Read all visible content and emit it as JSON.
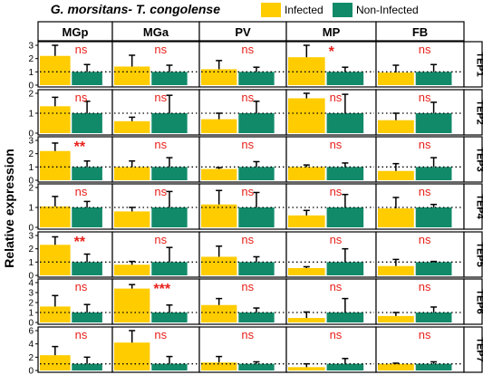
{
  "chart_data": {
    "type": "bar",
    "title": "G. morsitans- T. congolense",
    "ylabel": "Relative expression",
    "columns": [
      "MGp",
      "MGa",
      "PV",
      "MP",
      "FB"
    ],
    "rows": [
      "TEP1",
      "TEP2",
      "TEP3",
      "TEP4",
      "TEP5",
      "TEP6",
      "TEP7"
    ],
    "series": [
      {
        "name": "Infected",
        "color": "#FFCC00"
      },
      {
        "name": "Non-Infected",
        "color": "#118A6A"
      }
    ],
    "reference_line": 1,
    "panels": [
      {
        "row": "TEP1",
        "ylim": [
          0,
          3
        ],
        "ticks": [
          0,
          1,
          2,
          3
        ],
        "cells": [
          {
            "column": "MGp",
            "infected": {
              "mean": 2.2,
              "err": 1.2
            },
            "non_infected": {
              "mean": 1.0,
              "err": 0.55
            },
            "significance": "ns"
          },
          {
            "column": "MGa",
            "infected": {
              "mean": 1.4,
              "err": 0.85
            },
            "non_infected": {
              "mean": 1.0,
              "err": 0.5
            },
            "significance": "ns"
          },
          {
            "column": "PV",
            "infected": {
              "mean": 1.2,
              "err": 0.65
            },
            "non_infected": {
              "mean": 1.0,
              "err": 0.35
            },
            "significance": "ns"
          },
          {
            "column": "MP",
            "infected": {
              "mean": 2.1,
              "err": 0.9
            },
            "non_infected": {
              "mean": 1.0,
              "err": 0.35
            },
            "significance": "*"
          },
          {
            "column": "FB",
            "infected": {
              "mean": 0.95,
              "err": 0.55
            },
            "non_infected": {
              "mean": 1.0,
              "err": 0.55
            },
            "significance": "ns"
          }
        ]
      },
      {
        "row": "TEP2",
        "ylim": [
          0,
          2
        ],
        "ticks": [
          0,
          1,
          2
        ],
        "cells": [
          {
            "column": "MGp",
            "infected": {
              "mean": 1.35,
              "err": 0.45
            },
            "non_infected": {
              "mean": 1.0,
              "err": 0.6
            },
            "significance": "ns"
          },
          {
            "column": "MGa",
            "infected": {
              "mean": 0.6,
              "err": 0.2
            },
            "non_infected": {
              "mean": 1.0,
              "err": 0.9
            },
            "significance": "ns"
          },
          {
            "column": "PV",
            "infected": {
              "mean": 0.7,
              "err": 0.3
            },
            "non_infected": {
              "mean": 1.0,
              "err": 0.6
            },
            "significance": "ns"
          },
          {
            "column": "MP",
            "infected": {
              "mean": 1.75,
              "err": 0.25
            },
            "non_infected": {
              "mean": 1.0,
              "err": 0.95
            },
            "significance": "ns"
          },
          {
            "column": "FB",
            "infected": {
              "mean": 0.65,
              "err": 0.35
            },
            "non_infected": {
              "mean": 1.0,
              "err": 0.55
            },
            "significance": "ns"
          }
        ]
      },
      {
        "row": "TEP3",
        "ylim": [
          0,
          3
        ],
        "ticks": [
          0,
          1,
          2,
          3
        ],
        "cells": [
          {
            "column": "MGp",
            "infected": {
              "mean": 2.2,
              "err": 0.6
            },
            "non_infected": {
              "mean": 1.0,
              "err": 0.45
            },
            "significance": "**"
          },
          {
            "column": "MGa",
            "infected": {
              "mean": 1.0,
              "err": 0.45
            },
            "non_infected": {
              "mean": 1.0,
              "err": 0.7
            },
            "significance": "ns"
          },
          {
            "column": "PV",
            "infected": {
              "mean": 0.85,
              "err": 0.1
            },
            "non_infected": {
              "mean": 1.0,
              "err": 0.4
            },
            "significance": "ns"
          },
          {
            "column": "MP",
            "infected": {
              "mean": 1.0,
              "err": 0.15
            },
            "non_infected": {
              "mean": 1.0,
              "err": 0.3
            },
            "significance": "ns"
          },
          {
            "column": "FB",
            "infected": {
              "mean": 0.7,
              "err": 0.55
            },
            "non_infected": {
              "mean": 1.0,
              "err": 0.7
            },
            "significance": "ns"
          }
        ]
      },
      {
        "row": "TEP4",
        "ylim": [
          0,
          2
        ],
        "ticks": [
          0,
          1,
          2
        ],
        "cells": [
          {
            "column": "MGp",
            "infected": {
              "mean": 1.05,
              "err": 0.5
            },
            "non_infected": {
              "mean": 1.0,
              "err": 0.3
            },
            "significance": "ns"
          },
          {
            "column": "MGa",
            "infected": {
              "mean": 0.8,
              "err": 0.2
            },
            "non_infected": {
              "mean": 1.0,
              "err": 0.8
            },
            "significance": "ns"
          },
          {
            "column": "PV",
            "infected": {
              "mean": 1.15,
              "err": 0.7
            },
            "non_infected": {
              "mean": 1.0,
              "err": 0.75
            },
            "significance": "ns"
          },
          {
            "column": "MP",
            "infected": {
              "mean": 0.6,
              "err": 0.25
            },
            "non_infected": {
              "mean": 1.0,
              "err": 0.65
            },
            "significance": "ns"
          },
          {
            "column": "FB",
            "infected": {
              "mean": 0.95,
              "err": 0.55
            },
            "non_infected": {
              "mean": 1.0,
              "err": 0.15
            },
            "significance": "ns"
          }
        ]
      },
      {
        "row": "TEP5",
        "ylim": [
          0,
          3
        ],
        "ticks": [
          0,
          1,
          2,
          3
        ],
        "cells": [
          {
            "column": "MGp",
            "infected": {
              "mean": 2.3,
              "err": 0.6
            },
            "non_infected": {
              "mean": 1.0,
              "err": 0.6
            },
            "significance": "**"
          },
          {
            "column": "MGa",
            "infected": {
              "mean": 0.8,
              "err": 0.25
            },
            "non_infected": {
              "mean": 1.0,
              "err": 1.1
            },
            "significance": "ns"
          },
          {
            "column": "PV",
            "infected": {
              "mean": 1.4,
              "err": 0.8
            },
            "non_infected": {
              "mean": 1.0,
              "err": 0.4
            },
            "significance": "ns"
          },
          {
            "column": "MP",
            "infected": {
              "mean": 0.55,
              "err": 0.1
            },
            "non_infected": {
              "mean": 1.0,
              "err": 1.0
            },
            "significance": "ns"
          },
          {
            "column": "FB",
            "infected": {
              "mean": 0.7,
              "err": 0.5
            },
            "non_infected": {
              "mean": 1.0,
              "err": 0.05
            },
            "significance": "ns"
          }
        ]
      },
      {
        "row": "TEP6",
        "ylim": [
          0,
          4
        ],
        "ticks": [
          0,
          1,
          2,
          3,
          4
        ],
        "cells": [
          {
            "column": "MGp",
            "infected": {
              "mean": 1.6,
              "err": 1.1
            },
            "non_infected": {
              "mean": 1.0,
              "err": 0.8
            },
            "significance": "ns"
          },
          {
            "column": "MGa",
            "infected": {
              "mean": 3.4,
              "err": 0.4
            },
            "non_infected": {
              "mean": 1.0,
              "err": 0.75
            },
            "significance": "***"
          },
          {
            "column": "PV",
            "infected": {
              "mean": 1.75,
              "err": 0.65
            },
            "non_infected": {
              "mean": 1.0,
              "err": 0.45
            },
            "significance": "ns"
          },
          {
            "column": "MP",
            "infected": {
              "mean": 0.45,
              "err": 0.6
            },
            "non_infected": {
              "mean": 1.0,
              "err": 1.4
            },
            "significance": "ns"
          },
          {
            "column": "FB",
            "infected": {
              "mean": 0.65,
              "err": 0.35
            },
            "non_infected": {
              "mean": 1.0,
              "err": 0.55
            },
            "significance": "ns"
          }
        ]
      },
      {
        "row": "TEP7",
        "ylim": [
          0,
          6
        ],
        "ticks": [
          0,
          2,
          4,
          6
        ],
        "cells": [
          {
            "column": "MGp",
            "infected": {
              "mean": 2.3,
              "err": 1.3
            },
            "non_infected": {
              "mean": 1.0,
              "err": 1.0
            },
            "significance": "ns"
          },
          {
            "column": "MGa",
            "infected": {
              "mean": 4.2,
              "err": 2.8
            },
            "non_infected": {
              "mean": 1.0,
              "err": 1.1
            },
            "significance": "ns"
          },
          {
            "column": "PV",
            "infected": {
              "mean": 1.2,
              "err": 0.9
            },
            "non_infected": {
              "mean": 1.0,
              "err": 0.3
            },
            "significance": "ns"
          },
          {
            "column": "MP",
            "infected": {
              "mean": 0.5,
              "err": 0.5
            },
            "non_infected": {
              "mean": 1.0,
              "err": 0.8
            },
            "significance": "ns"
          },
          {
            "column": "FB",
            "infected": {
              "mean": 1.0,
              "err": 0.1
            },
            "non_infected": {
              "mean": 1.0,
              "err": 0.3
            },
            "significance": "ns"
          }
        ]
      }
    ],
    "significance_color": "#E8211B",
    "grid": false,
    "legend_position": "top"
  }
}
